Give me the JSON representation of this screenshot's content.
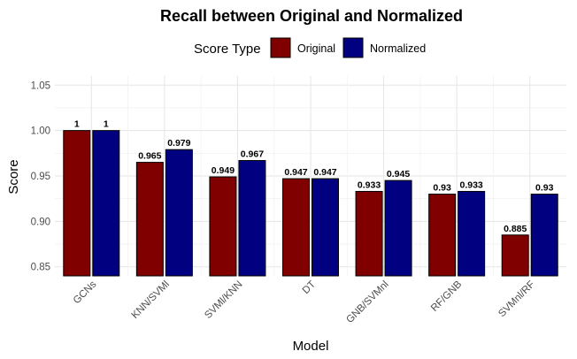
{
  "chart_data": {
    "type": "bar",
    "title": "Recall  between Original and Normalized",
    "xlabel": "Model",
    "ylabel": "Score",
    "legend": {
      "title": "Score Type",
      "position": "top",
      "entries": [
        "Original",
        "Normalized"
      ]
    },
    "categories": [
      "GCNs",
      "KNN/SVMl",
      "SVMl/KNN",
      "DT",
      "GNB/SVMnl",
      "RF/GNB",
      "SVMnl/RF"
    ],
    "series": [
      {
        "name": "Original",
        "color": "#800000",
        "values": [
          1,
          0.965,
          0.949,
          0.947,
          0.933,
          0.93,
          0.885
        ],
        "labels": [
          "1",
          "0.965",
          "0.949",
          "0.947",
          "0.933",
          "0.93",
          "0.885"
        ]
      },
      {
        "name": "Normalized",
        "color": "#000080",
        "values": [
          1,
          0.979,
          0.967,
          0.947,
          0.945,
          0.933,
          0.93
        ],
        "labels": [
          "1",
          "0.979",
          "0.967",
          "0.947",
          "0.945",
          "0.933",
          "0.93"
        ]
      }
    ],
    "ylim": [
      0.84,
      1.06
    ],
    "yticks": [
      0.85,
      0.9,
      0.95,
      1.0,
      1.05
    ],
    "ytick_labels": [
      "0.85",
      "0.90",
      "0.95",
      "1.00",
      "1.05"
    ],
    "grid": true
  }
}
